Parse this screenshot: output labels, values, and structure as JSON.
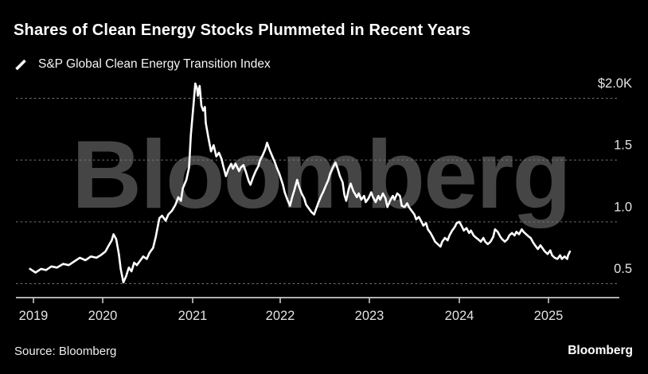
{
  "header": {
    "title": "Shares of Clean Energy Stocks Plummeted in Recent Years",
    "legend_label": "S&P Global Clean Energy Transition Index"
  },
  "footer": {
    "source": "Source: Bloomberg",
    "brand": "Bloomberg"
  },
  "watermark": "Bloomberg",
  "colors": {
    "background": "#000000",
    "line": "#ffffff",
    "gridline": "#787878",
    "axis": "#c9c9c9",
    "tick_label": "#e3e3e3",
    "watermark": "#454545",
    "title": "#ffffff"
  },
  "chart_data": {
    "type": "line",
    "title": "Shares of Clean Energy Stocks Plummeted in Recent Years",
    "series_name": "S&P Global Clean Energy Transition Index",
    "unit": "$K",
    "x_ticks": [
      2019,
      2020,
      2021,
      2022,
      2023,
      2024,
      2025
    ],
    "y_ticks": [
      {
        "label": "$2.0K",
        "value": 2.0
      },
      {
        "label": "1.5",
        "value": 1.5
      },
      {
        "label": "1.0",
        "value": 1.0
      },
      {
        "label": "0.5",
        "value": 0.5
      }
    ],
    "ylim": [
      0.4,
      2.2
    ],
    "grid": "horizontal-dashed",
    "legend_position": "top-left",
    "points": [
      [
        2018.95,
        0.62
      ],
      [
        2019.03,
        0.59
      ],
      [
        2019.11,
        0.62
      ],
      [
        2019.18,
        0.61
      ],
      [
        2019.26,
        0.64
      ],
      [
        2019.34,
        0.63
      ],
      [
        2019.43,
        0.66
      ],
      [
        2019.51,
        0.65
      ],
      [
        2019.59,
        0.68
      ],
      [
        2019.67,
        0.71
      ],
      [
        2019.75,
        0.69
      ],
      [
        2019.83,
        0.72
      ],
      [
        2019.91,
        0.71
      ],
      [
        2019.97,
        0.73
      ],
      [
        2020.03,
        0.76
      ],
      [
        2020.06,
        0.8
      ],
      [
        2020.1,
        0.85
      ],
      [
        2020.12,
        0.9
      ],
      [
        2020.15,
        0.86
      ],
      [
        2020.18,
        0.74
      ],
      [
        2020.2,
        0.62
      ],
      [
        2020.23,
        0.51
      ],
      [
        2020.26,
        0.56
      ],
      [
        2020.29,
        0.63
      ],
      [
        2020.32,
        0.6
      ],
      [
        2020.35,
        0.67
      ],
      [
        2020.38,
        0.65
      ],
      [
        2020.42,
        0.69
      ],
      [
        2020.45,
        0.72
      ],
      [
        2020.49,
        0.7
      ],
      [
        2020.52,
        0.75
      ],
      [
        2020.56,
        0.79
      ],
      [
        2020.59,
        0.88
      ],
      [
        2020.63,
        1.03
      ],
      [
        2020.66,
        1.05
      ],
      [
        2020.7,
        1.01
      ],
      [
        2020.73,
        1.06
      ],
      [
        2020.77,
        1.09
      ],
      [
        2020.81,
        1.14
      ],
      [
        2020.84,
        1.2
      ],
      [
        2020.87,
        1.17
      ],
      [
        2020.89,
        1.27
      ],
      [
        2020.93,
        1.34
      ],
      [
        2020.96,
        1.44
      ],
      [
        2020.98,
        1.7
      ],
      [
        2021.01,
        1.95
      ],
      [
        2021.03,
        2.12
      ],
      [
        2021.05,
        2.08
      ],
      [
        2021.06,
        2.02
      ],
      [
        2021.08,
        2.1
      ],
      [
        2021.1,
        1.94
      ],
      [
        2021.12,
        1.9
      ],
      [
        2021.14,
        1.93
      ],
      [
        2021.15,
        1.8
      ],
      [
        2021.18,
        1.68
      ],
      [
        2021.21,
        1.57
      ],
      [
        2021.24,
        1.62
      ],
      [
        2021.27,
        1.53
      ],
      [
        2021.3,
        1.56
      ],
      [
        2021.33,
        1.51
      ],
      [
        2021.35,
        1.45
      ],
      [
        2021.38,
        1.37
      ],
      [
        2021.41,
        1.43
      ],
      [
        2021.44,
        1.47
      ],
      [
        2021.46,
        1.43
      ],
      [
        2021.49,
        1.47
      ],
      [
        2021.53,
        1.41
      ],
      [
        2021.55,
        1.44
      ],
      [
        2021.58,
        1.46
      ],
      [
        2021.61,
        1.4
      ],
      [
        2021.64,
        1.33
      ],
      [
        2021.66,
        1.3
      ],
      [
        2021.69,
        1.36
      ],
      [
        2021.72,
        1.41
      ],
      [
        2021.75,
        1.45
      ],
      [
        2021.77,
        1.5
      ],
      [
        2021.8,
        1.54
      ],
      [
        2021.83,
        1.59
      ],
      [
        2021.85,
        1.64
      ],
      [
        2021.88,
        1.58
      ],
      [
        2021.91,
        1.53
      ],
      [
        2021.94,
        1.48
      ],
      [
        2021.96,
        1.44
      ],
      [
        2021.99,
        1.39
      ],
      [
        2022.03,
        1.3
      ],
      [
        2022.05,
        1.24
      ],
      [
        2022.08,
        1.18
      ],
      [
        2022.11,
        1.13
      ],
      [
        2022.13,
        1.19
      ],
      [
        2022.16,
        1.26
      ],
      [
        2022.19,
        1.34
      ],
      [
        2022.21,
        1.29
      ],
      [
        2022.24,
        1.23
      ],
      [
        2022.27,
        1.19
      ],
      [
        2022.29,
        1.14
      ],
      [
        2022.32,
        1.11
      ],
      [
        2022.35,
        1.08
      ],
      [
        2022.38,
        1.06
      ],
      [
        2022.4,
        1.1
      ],
      [
        2022.43,
        1.16
      ],
      [
        2022.46,
        1.21
      ],
      [
        2022.48,
        1.24
      ],
      [
        2022.51,
        1.29
      ],
      [
        2022.54,
        1.34
      ],
      [
        2022.56,
        1.39
      ],
      [
        2022.59,
        1.44
      ],
      [
        2022.62,
        1.48
      ],
      [
        2022.64,
        1.44
      ],
      [
        2022.67,
        1.37
      ],
      [
        2022.7,
        1.32
      ],
      [
        2022.72,
        1.22
      ],
      [
        2022.74,
        1.17
      ],
      [
        2022.77,
        1.27
      ],
      [
        2022.79,
        1.31
      ],
      [
        2022.82,
        1.25
      ],
      [
        2022.86,
        1.2
      ],
      [
        2022.88,
        1.23
      ],
      [
        2022.91,
        1.18
      ],
      [
        2022.94,
        1.21
      ],
      [
        2022.96,
        1.16
      ],
      [
        2022.99,
        1.19
      ],
      [
        2023.02,
        1.24
      ],
      [
        2023.04,
        1.2
      ],
      [
        2023.07,
        1.16
      ],
      [
        2023.1,
        1.21
      ],
      [
        2023.12,
        1.18
      ],
      [
        2023.15,
        1.23
      ],
      [
        2023.18,
        1.19
      ],
      [
        2023.2,
        1.12
      ],
      [
        2023.23,
        1.17
      ],
      [
        2023.26,
        1.21
      ],
      [
        2023.28,
        1.18
      ],
      [
        2023.31,
        1.23
      ],
      [
        2023.34,
        1.21
      ],
      [
        2023.36,
        1.13
      ],
      [
        2023.39,
        1.12
      ],
      [
        2023.42,
        1.15
      ],
      [
        2023.44,
        1.12
      ],
      [
        2023.47,
        1.09
      ],
      [
        2023.5,
        1.06
      ],
      [
        2023.52,
        1.02
      ],
      [
        2023.55,
        1.04
      ],
      [
        2023.58,
        1.0
      ],
      [
        2023.6,
        0.97
      ],
      [
        2023.63,
        0.99
      ],
      [
        2023.65,
        0.94
      ],
      [
        2023.68,
        0.91
      ],
      [
        2023.71,
        0.87
      ],
      [
        2023.73,
        0.84
      ],
      [
        2023.76,
        0.82
      ],
      [
        2023.79,
        0.8
      ],
      [
        2023.81,
        0.84
      ],
      [
        2023.84,
        0.87
      ],
      [
        2023.87,
        0.85
      ],
      [
        2023.89,
        0.89
      ],
      [
        2023.92,
        0.93
      ],
      [
        2023.95,
        0.96
      ],
      [
        2023.97,
        0.99
      ],
      [
        2024.0,
        1.0
      ],
      [
        2024.03,
        0.96
      ],
      [
        2024.05,
        0.93
      ],
      [
        2024.08,
        0.95
      ],
      [
        2024.11,
        0.91
      ],
      [
        2024.13,
        0.93
      ],
      [
        2024.16,
        0.89
      ],
      [
        2024.19,
        0.87
      ],
      [
        2024.21,
        0.86
      ],
      [
        2024.24,
        0.84
      ],
      [
        2024.27,
        0.87
      ],
      [
        2024.29,
        0.84
      ],
      [
        2024.32,
        0.82
      ],
      [
        2024.35,
        0.84
      ],
      [
        2024.38,
        0.88
      ],
      [
        2024.4,
        0.94
      ],
      [
        2024.43,
        0.92
      ],
      [
        2024.46,
        0.88
      ],
      [
        2024.48,
        0.86
      ],
      [
        2024.51,
        0.84
      ],
      [
        2024.54,
        0.86
      ],
      [
        2024.56,
        0.89
      ],
      [
        2024.59,
        0.91
      ],
      [
        2024.62,
        0.89
      ],
      [
        2024.64,
        0.92
      ],
      [
        2024.67,
        0.9
      ],
      [
        2024.7,
        0.94
      ],
      [
        2024.72,
        0.92
      ],
      [
        2024.75,
        0.9
      ],
      [
        2024.78,
        0.88
      ],
      [
        2024.8,
        0.87
      ],
      [
        2024.83,
        0.83
      ],
      [
        2024.86,
        0.8
      ],
      [
        2024.88,
        0.78
      ],
      [
        2024.91,
        0.81
      ],
      [
        2024.94,
        0.78
      ],
      [
        2024.96,
        0.76
      ],
      [
        2024.99,
        0.74
      ],
      [
        2025.02,
        0.77
      ],
      [
        2025.04,
        0.73
      ],
      [
        2025.07,
        0.71
      ],
      [
        2025.1,
        0.7
      ],
      [
        2025.13,
        0.73
      ],
      [
        2025.15,
        0.7
      ],
      [
        2025.18,
        0.72
      ],
      [
        2025.21,
        0.7
      ],
      [
        2025.22,
        0.73
      ],
      [
        2025.24,
        0.76
      ]
    ]
  }
}
